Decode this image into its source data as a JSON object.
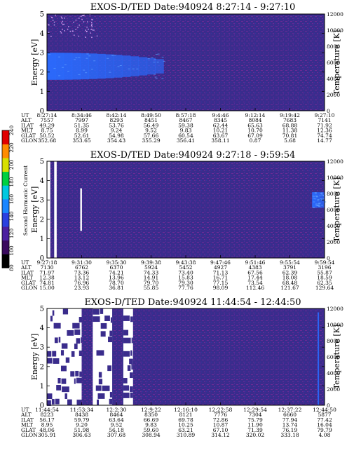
{
  "chart_data": [
    {
      "type": "heatmap",
      "title": "EXOS-D/TED   Date:940924   8:27:14 - 9:27:10",
      "ylabel": "Energy [eV]",
      "ylabel_right": "Temperature [K]",
      "ylim": [
        0,
        5
      ],
      "yticks": [
        "0",
        "1",
        "2",
        "3",
        "4",
        "5"
      ],
      "ylim_right": [
        0,
        12000
      ],
      "yticks_right": [
        "0",
        "2000",
        "4000",
        "6000",
        "8000",
        "10000",
        "12000"
      ],
      "features": [
        {
          "kind": "band",
          "t_start": 0.0,
          "t_end": 0.42,
          "energy_low": 1.6,
          "energy_high": 3.0,
          "level": "high"
        },
        {
          "kind": "speckle",
          "t_start": 0.0,
          "t_end": 0.18,
          "energy_low": 3.8,
          "energy_high": 5.0,
          "level": "mid"
        }
      ],
      "table": {
        "labels": [
          "UT",
          "ALT",
          "ILAT",
          "MLT",
          "GLAT",
          "GLON"
        ],
        "columns": [
          [
            "8:27:14",
            "7557",
            "49.29",
            "8.75",
            "50.52",
            "352.68"
          ],
          [
            "8:34:46",
            "7997",
            "51.35",
            "8.99",
            "52.61",
            "353.65"
          ],
          [
            "8:42:14",
            "8293",
            "53.76",
            "9.24",
            "54.98",
            "354.43"
          ],
          [
            "8:49:50",
            "8451",
            "56.49",
            "9.52",
            "57.66",
            "355.29"
          ],
          [
            "8:57:18",
            "8467",
            "59.38",
            "9.83",
            "60.54",
            "356.41"
          ],
          [
            "9:4:46",
            "8345",
            "62.44",
            "10.21",
            "63.67",
            "358.11"
          ],
          [
            "9:12:14",
            "8084",
            "65.63",
            "10.70",
            "67.09",
            "0.87"
          ],
          [
            "9:19:42",
            "7683",
            "68.88",
            "11.38",
            "70.81",
            "5.68"
          ],
          [
            "9:27:10",
            "7141",
            "71.92",
            "12.36",
            "74.74",
            "14.77"
          ]
        ]
      }
    },
    {
      "type": "heatmap",
      "title": "EXOS-D/TED   Date:940924   9:27:18 - 9:59:54",
      "ylabel": "Energy [eV]",
      "ylabel_right": "Temperature [K]",
      "ylim": [
        0,
        5
      ],
      "yticks": [
        "0",
        "1",
        "2",
        "3",
        "4",
        "5"
      ],
      "ylim_right": [
        0,
        12000
      ],
      "yticks_right": [
        "0",
        "2000",
        "4000",
        "6000",
        "8000",
        "10000",
        "12000"
      ],
      "features": [
        {
          "kind": "gap",
          "t_start": 0.0,
          "t_end": 0.012,
          "energy_low": 0,
          "energy_high": 5
        },
        {
          "kind": "gap",
          "t_start": 0.026,
          "t_end": 0.035,
          "energy_low": 0,
          "energy_high": 5
        },
        {
          "kind": "gap",
          "t_start": 0.12,
          "t_end": 0.126,
          "energy_low": 1.4,
          "energy_high": 3.6
        },
        {
          "kind": "blob",
          "t_start": 0.955,
          "t_end": 1.0,
          "energy_low": 2.6,
          "energy_high": 3.4,
          "level": "high"
        }
      ],
      "table": {
        "labels": [
          "UT",
          "ALT",
          "ILAT",
          "MLT",
          "GLAT",
          "GLON"
        ],
        "columns": [
          [
            "9:27:18",
            "7130",
            "71.97",
            "12.38",
            "74.81",
            "15.00"
          ],
          [
            "9:31:30",
            "6762",
            "73.36",
            "13.12",
            "76.96",
            "23.93"
          ],
          [
            "9:35:30",
            "6370",
            "74.21",
            "13.96",
            "78.70",
            "36.81"
          ],
          [
            "9:39:38",
            "5924",
            "74.33",
            "14.91",
            "79.70",
            "55.85"
          ],
          [
            "9:43:38",
            "5452",
            "73.40",
            "15.83",
            "79.30",
            "77.76"
          ],
          [
            "9:47:46",
            "4927",
            "71.13",
            "16.71",
            "77.15",
            "98.09"
          ],
          [
            "9:51:46",
            "4383",
            "67.56",
            "17.44",
            "73.54",
            "112.46"
          ],
          [
            "9:55:54",
            "3791",
            "62.39",
            "18.08",
            "68.48",
            "121.67"
          ],
          [
            "9:59:54",
            "3196",
            "55.87",
            "18.59",
            "62.35",
            "129.64"
          ]
        ]
      }
    },
    {
      "type": "heatmap",
      "title": "EXOS-D/TED   Date:940924   11:44:54 - 12:44:50",
      "ylabel": "Energy [eV]",
      "ylabel_right": "Temperature [K]",
      "ylim": [
        0,
        5
      ],
      "yticks": [
        "0",
        "1",
        "2",
        "3",
        "4",
        "5"
      ],
      "ylim_right": [
        0,
        12000
      ],
      "yticks_right": [
        "0",
        "2000",
        "4000",
        "6000",
        "8000",
        "10000",
        "12000"
      ],
      "features": [
        {
          "kind": "gap",
          "t_start": 0.0,
          "t_end": 0.125,
          "energy_low": 0,
          "energy_high": 5
        },
        {
          "kind": "gap",
          "t_start": 0.165,
          "t_end": 0.235,
          "energy_low": 0,
          "energy_high": 5
        },
        {
          "kind": "gap",
          "t_start": 0.275,
          "t_end": 0.31,
          "energy_low": 0,
          "energy_high": 5
        },
        {
          "kind": "streak",
          "t_start": 0.975,
          "t_end": 0.98,
          "energy_low": 0,
          "energy_high": 4.8,
          "level": "high"
        }
      ],
      "table": {
        "labels": [
          "UT",
          "ALT",
          "ILAT",
          "MLT",
          "GLAT",
          "GLON"
        ],
        "columns": [
          [
            "11:44:54",
            "8223",
            "56.17",
            "8.95",
            "48.06",
            "305.91"
          ],
          [
            "11:53:34",
            "8438",
            "59.79",
            "9.20",
            "51.98",
            "306.63"
          ],
          [
            "12:2:30",
            "8464",
            "63.64",
            "9.52",
            "56.18",
            "307.68"
          ],
          [
            "12:9:22",
            "8350",
            "66.69",
            "9.83",
            "59.60",
            "308.94"
          ],
          [
            "12:16:10",
            "8121",
            "69.78",
            "10.25",
            "63.21",
            "310.89"
          ],
          [
            "12:22:58",
            "7776",
            "72.86",
            "10.87",
            "67.10",
            "314.12"
          ],
          [
            "12:29:54",
            "7304",
            "75.79",
            "11.90",
            "71.39",
            "320.02"
          ],
          [
            "12:37:22",
            "6660",
            "77.94",
            "13.74",
            "76.19",
            "333.18"
          ],
          [
            "12:44:50",
            "5877",
            "77.42",
            "16.04",
            "79.79",
            "4.08"
          ]
        ]
      }
    }
  ],
  "colorbar": {
    "label": "Second Harmonic Current",
    "range": [
      80,
      240
    ],
    "ticks": [
      "80",
      "100",
      "120",
      "140",
      "160",
      "180",
      "200",
      "220",
      "240"
    ],
    "colors": [
      "#000000",
      "#3a0a5e",
      "#4b1fa0",
      "#2a40e0",
      "#1a86ff",
      "#00c8e0",
      "#00d040",
      "#d8e000",
      "#ff8c00",
      "#e00000"
    ]
  },
  "background_color": "#3a2c8c",
  "speckle_color": "#7a2a9a",
  "high_color": "#2a6cff",
  "gap_color": "#ffffff"
}
